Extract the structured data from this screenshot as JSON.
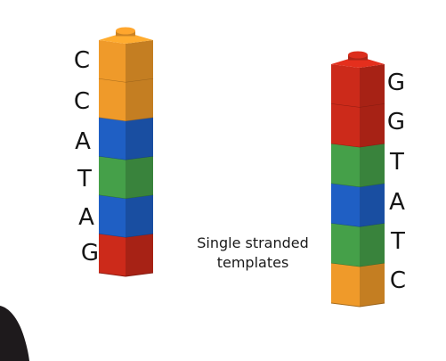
{
  "left_strand": {
    "letters": [
      "C",
      "C",
      "A",
      "T",
      "A",
      "G"
    ],
    "colors": [
      "#ef9a2a",
      "#ef9a2a",
      "#1f5fc4",
      "#45a049",
      "#1f5fc4",
      "#cc2a1a"
    ]
  },
  "right_strand": {
    "letters": [
      "G",
      "G",
      "T",
      "A",
      "T",
      "C"
    ],
    "colors": [
      "#cc2a1a",
      "#cc2a1a",
      "#45a049",
      "#1f5fc4",
      "#45a049",
      "#ef9a2a"
    ]
  },
  "caption": {
    "line1": "Single stranded",
    "line2": "templates"
  }
}
